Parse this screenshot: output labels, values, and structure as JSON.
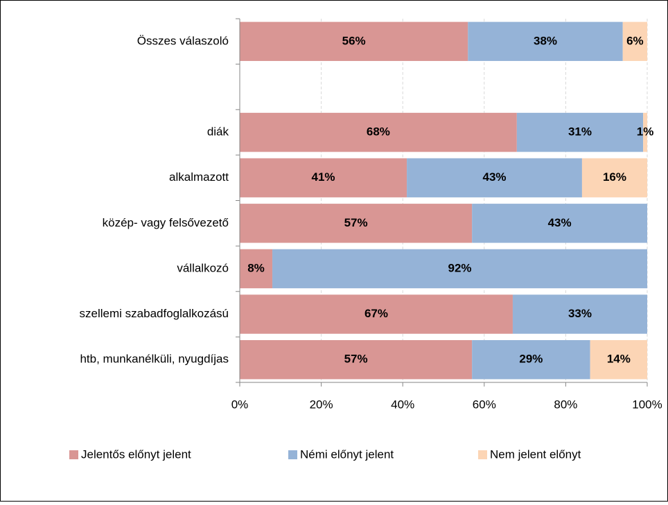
{
  "chart_data": {
    "type": "stacked-barh",
    "categories": [
      "Összes válaszoló",
      null,
      "diák",
      "alkalmazott",
      "közép- vagy felsővezető",
      "vállalkozó",
      "szellemi szabadfoglalkozású",
      "htb, munkanélküli, nyugdíjas"
    ],
    "series": [
      {
        "name": "Jelentős előnyt jelent",
        "color": "#d99694",
        "values": [
          56,
          null,
          68,
          41,
          57,
          8,
          67,
          57
        ],
        "value_labels": [
          "56%",
          null,
          "68%",
          "41%",
          "57%",
          "8%",
          "67%",
          "57%"
        ]
      },
      {
        "name": "Némi előnyt jelent",
        "color": "#95b3d7",
        "values": [
          38,
          null,
          31,
          43,
          43,
          92,
          33,
          29
        ],
        "value_labels": [
          "38%",
          null,
          "31%",
          "43%",
          "43%",
          "92%",
          "33%",
          "29%"
        ]
      },
      {
        "name": "Nem jelent előnyt",
        "color": "#fcd5b5",
        "values": [
          6,
          null,
          1,
          16,
          null,
          null,
          null,
          14
        ],
        "value_labels": [
          "6%",
          null,
          "1%",
          "16%",
          null,
          null,
          null,
          "14%"
        ]
      }
    ],
    "xlim": [
      0,
      100
    ],
    "xticks": [
      {
        "value": 0,
        "label": "0%"
      },
      {
        "value": 20,
        "label": "20%"
      },
      {
        "value": 40,
        "label": "40%"
      },
      {
        "value": 60,
        "label": "60%"
      },
      {
        "value": 80,
        "label": "80%"
      },
      {
        "value": 100,
        "label": "100%"
      }
    ],
    "grid": true,
    "legend": "bottom"
  }
}
